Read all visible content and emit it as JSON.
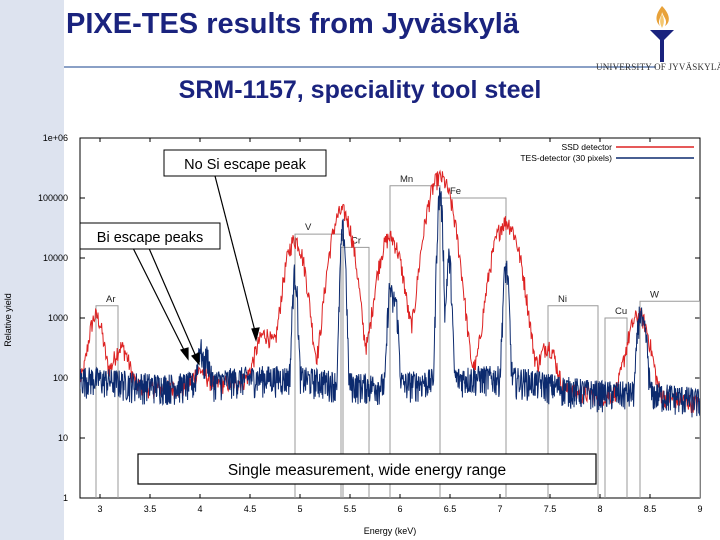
{
  "header": {
    "title": "PIXE-TES  results from Jyväskylä",
    "subtitle": "SRM-1157, speciality tool steel",
    "university": "UNIVERSITY OF JYVÄSKYLÄ"
  },
  "annotations": {
    "no_si": "No Si escape peak",
    "bi": "Bi escape peaks",
    "single": "Single measurement, wide energy range"
  },
  "colors": {
    "ssd": "#dd2222",
    "tes": "#0c2a6e",
    "title": "#1a237e",
    "logo": "#e8a23a"
  },
  "chart_data": {
    "type": "line",
    "title": "",
    "xlabel": "Energy (keV)",
    "ylabel": "Relative yield",
    "xlim": [
      2.8,
      9.0
    ],
    "ylim": [
      1,
      1000000
    ],
    "yscale": "log",
    "x_ticks": [
      "3",
      "3.5",
      "4",
      "4.5",
      "5",
      "5.5",
      "6",
      "6.5",
      "7",
      "7.5",
      "8",
      "8.5",
      "9"
    ],
    "y_ticks": [
      "1",
      "10",
      "100",
      "1000",
      "10000",
      "100000",
      "1e+06"
    ],
    "legend_position": "top-right",
    "series": [
      {
        "name": "SSD detector",
        "color": "#dd2222",
        "baseline": 80,
        "peaks": [
          [
            2.96,
            1000,
            0.05
          ],
          [
            3.21,
            250,
            0.06
          ],
          [
            4.0,
            60,
            0.06
          ],
          [
            4.65,
            450,
            0.07
          ],
          [
            4.95,
            20000,
            0.065
          ],
          [
            5.42,
            60000,
            0.07
          ],
          [
            5.9,
            22000,
            0.075
          ],
          [
            6.4,
            220000,
            0.08
          ],
          [
            7.06,
            40000,
            0.085
          ],
          [
            7.48,
            300,
            0.06
          ],
          [
            8.33,
            300,
            0.07
          ],
          [
            8.4,
            1500,
            0.07
          ]
        ]
      },
      {
        "name": "TES-detector (30 pixels)",
        "color": "#0c2a6e",
        "baseline": 90,
        "peaks": [
          [
            4.0,
            250,
            0.02
          ],
          [
            4.07,
            150,
            0.02
          ],
          [
            4.95,
            5500,
            0.016
          ],
          [
            5.43,
            30000,
            0.016
          ],
          [
            5.9,
            3000,
            0.016
          ],
          [
            5.95,
            2000,
            0.02
          ],
          [
            6.4,
            120000,
            0.016
          ],
          [
            6.49,
            10000,
            0.016
          ],
          [
            7.06,
            7000,
            0.018
          ],
          [
            8.4,
            1800,
            0.02
          ],
          [
            8.45,
            800,
            0.02
          ]
        ]
      }
    ],
    "element_labels": [
      {
        "label": "Ar",
        "energy": 2.96,
        "height": 1600
      },
      {
        "label": "V",
        "energy": 4.95,
        "height": 25000
      },
      {
        "label": "Cr",
        "energy": 5.41,
        "height": 15000
      },
      {
        "label": "Mn",
        "energy": 5.9,
        "height": 160000
      },
      {
        "label": "Fe",
        "energy": 6.4,
        "height": 100000
      },
      {
        "label": "Ni",
        "energy": 7.48,
        "height": 1600
      },
      {
        "label": "Cu",
        "energy": 8.05,
        "height": 1000
      },
      {
        "label": "W",
        "energy": 8.4,
        "height": 1900
      }
    ]
  }
}
